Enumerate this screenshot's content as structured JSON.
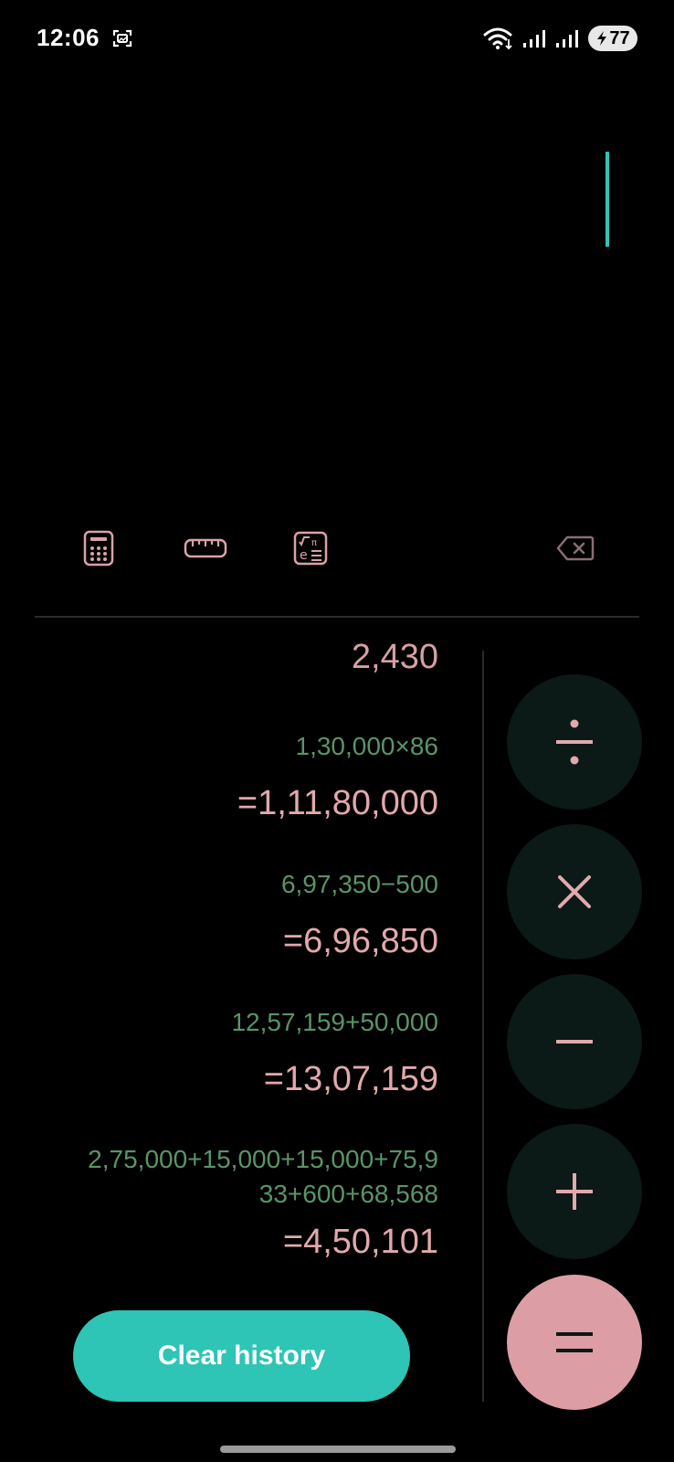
{
  "status_bar": {
    "time": "12:06",
    "battery": "77",
    "icons": [
      "screenshot-icon",
      "wifi-icon",
      "signal-icon",
      "signal-icon",
      "battery-icon"
    ]
  },
  "toolbar": {
    "icons": [
      "calculator-icon",
      "ruler-icon",
      "scientific-icon",
      "backspace-icon"
    ]
  },
  "history": {
    "partial_top": "2,430",
    "entries": [
      {
        "expression_lines": [
          "1,30,000×86"
        ],
        "result": "=1,11,80,000"
      },
      {
        "expression_lines": [
          "6,97,350−500"
        ],
        "result": "=6,96,850"
      },
      {
        "expression_lines": [
          "12,57,159+50,000"
        ],
        "result": "=13,07,159"
      },
      {
        "expression_lines": [
          "2,75,000+15,000+15,000+75,9",
          "33+600+68,568"
        ],
        "result": "=4,50,101"
      }
    ],
    "clear_label": "Clear history"
  },
  "operators": [
    "divide",
    "multiply",
    "minus",
    "plus",
    "equals"
  ],
  "colors": {
    "accent": "#2ec4b6",
    "expression": "#5a9468",
    "result": "#e2a9ac",
    "icon_pink": "#d9a2a7",
    "operator_bg": "#0b1917",
    "equals_bg": "#dc9ea4"
  }
}
